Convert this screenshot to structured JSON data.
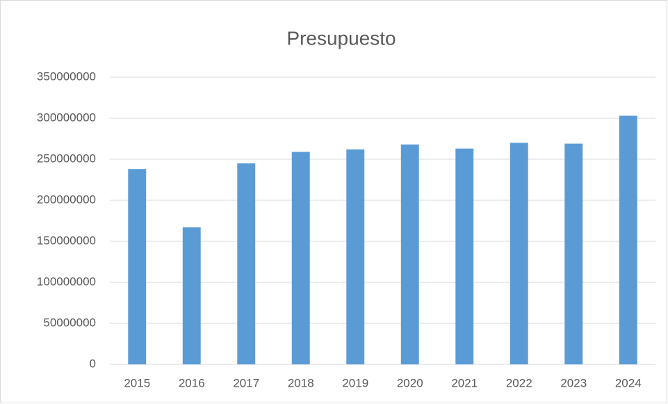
{
  "chart_data": {
    "type": "bar",
    "title": "Presupuesto",
    "categories": [
      "2015",
      "2016",
      "2017",
      "2018",
      "2019",
      "2020",
      "2021",
      "2022",
      "2023",
      "2024"
    ],
    "values": [
      238000000,
      167000000,
      245000000,
      259000000,
      262000000,
      268000000,
      263000000,
      270000000,
      269000000,
      303000000
    ],
    "color": "#5b9bd5",
    "ylim": [
      0,
      350000000
    ],
    "yticks": [
      0,
      50000000,
      100000000,
      150000000,
      200000000,
      250000000,
      300000000,
      350000000
    ],
    "grid": true
  }
}
